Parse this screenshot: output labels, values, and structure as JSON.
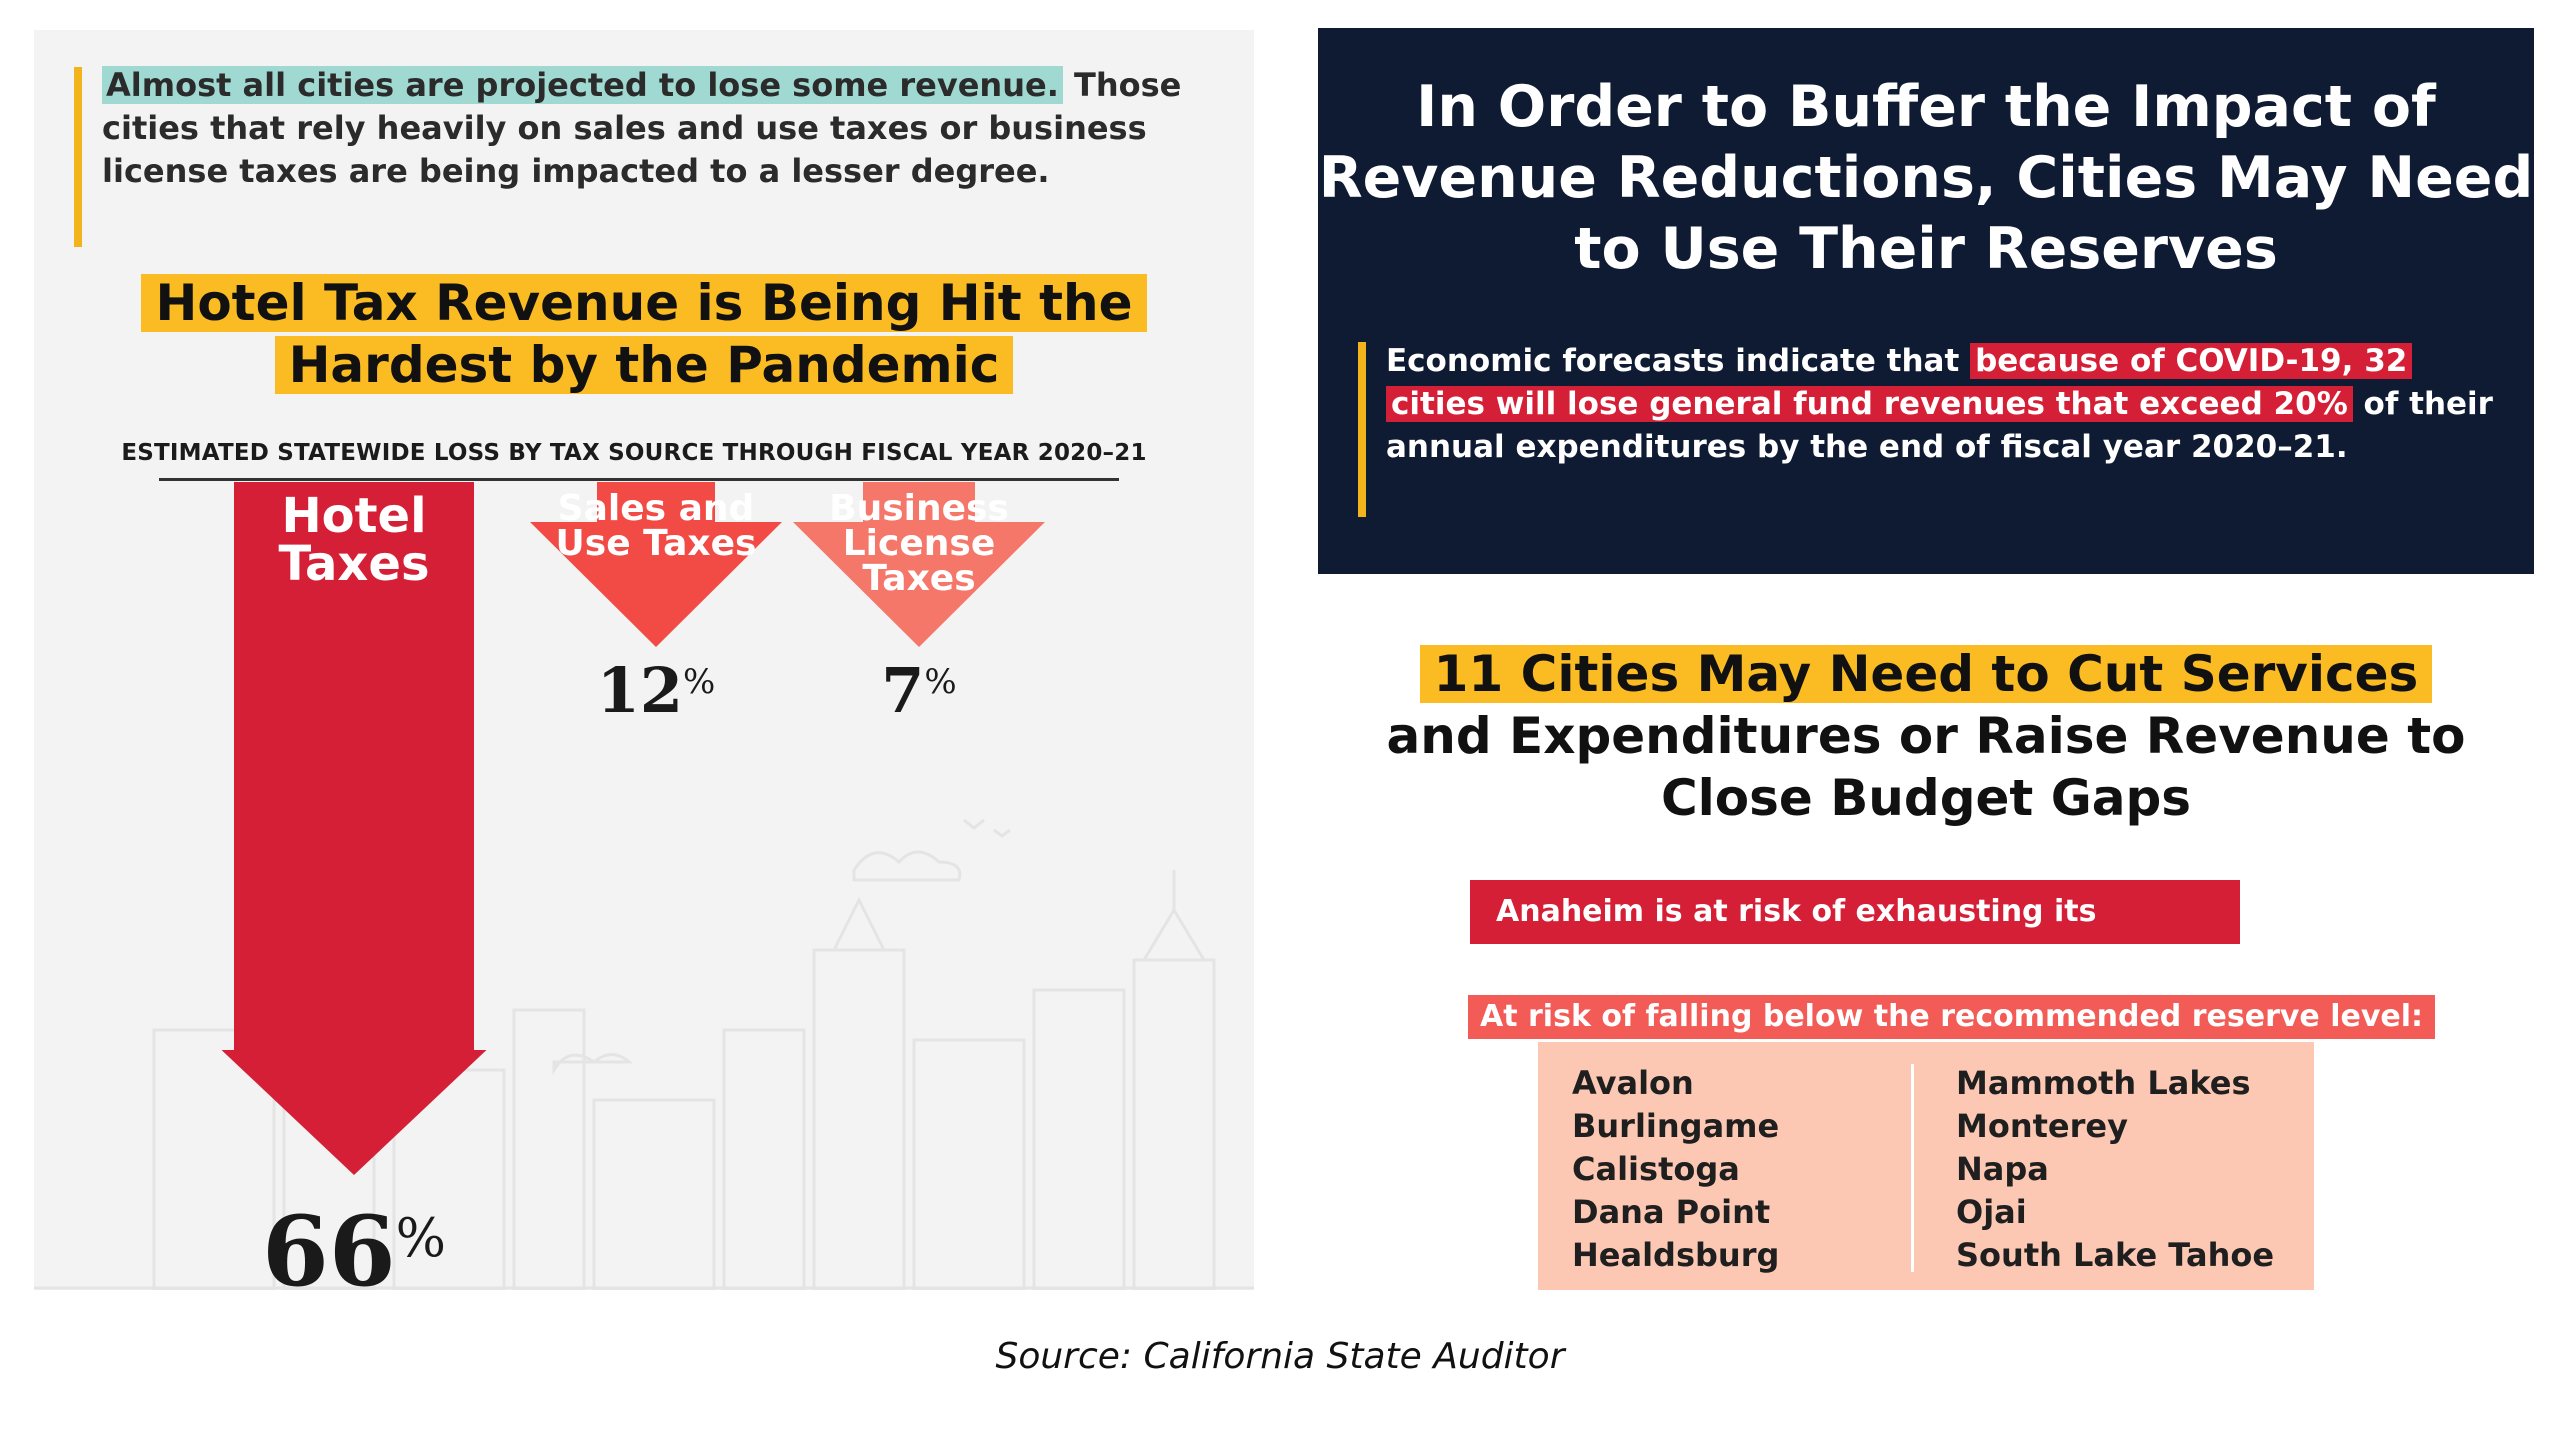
{
  "left": {
    "intro_highlight": "Almost all cities are projected to lose some revenue.",
    "intro_rest": " Those cities that rely heavily on sales and use taxes or business license taxes are being impacted to a lesser degree.",
    "title_line1": "Hotel Tax Revenue is Being Hit the",
    "title_line2": "Hardest by the Pandemic",
    "subtitle": "ESTIMATED STATEWIDE LOSS BY TAX SOURCE THROUGH FISCAL YEAR 2020–21"
  },
  "chart_data": {
    "type": "bar",
    "title": "Hotel Tax Revenue is Being Hit the Hardest by the Pandemic",
    "subtitle": "ESTIMATED STATEWIDE LOSS BY TAX SOURCE THROUGH FISCAL YEAR 2020–21",
    "categories": [
      [
        "Hotel",
        "Taxes"
      ],
      [
        "Sales and",
        "Use Taxes"
      ],
      [
        "Business",
        "License",
        "Taxes"
      ]
    ],
    "values": [
      66,
      12,
      7
    ],
    "value_labels": [
      "66",
      "12",
      "7"
    ],
    "unit": "%",
    "colors": [
      "#d51f36",
      "#f24b46",
      "#f4776a"
    ],
    "orientation": "downward arrows"
  },
  "right": {
    "navy_title_lines": [
      "In Order to Buffer the Impact of",
      "Revenue Reductions, Cities May Need",
      "to Use Their Reserves"
    ],
    "forecast_prefix": "Economic forecasts indicate that ",
    "forecast_highlight": "because of COVID-19, 32 cities will lose general fund revenues that exceed 20%",
    "forecast_suffix": " of their annual expenditures by the end of fiscal year 2020–21.",
    "cities_highlight": "11 Cities May Need to Cut Services",
    "cities_line2": "and Expenditures or Raise Revenue to",
    "cities_line3": "Close Budget Gaps",
    "reserve_warning": "Anaheim is at risk of exhausting its reserves.",
    "risk_header": "At risk of falling below the recommended reserve level:",
    "cities_left": [
      "Avalon",
      "Burlingame",
      "Calistoga",
      "Dana Point",
      "Healdsburg"
    ],
    "cities_right": [
      "Mammoth Lakes",
      "Monterey",
      "Napa",
      "Ojai",
      "South Lake Tahoe"
    ]
  },
  "source": "Source: California State Auditor",
  "colors": {
    "navy": "#0f1b33",
    "gold": "#fbbb22",
    "red": "#d51f36",
    "teal": "#9fd9d2",
    "peach": "#fcc8b4"
  }
}
